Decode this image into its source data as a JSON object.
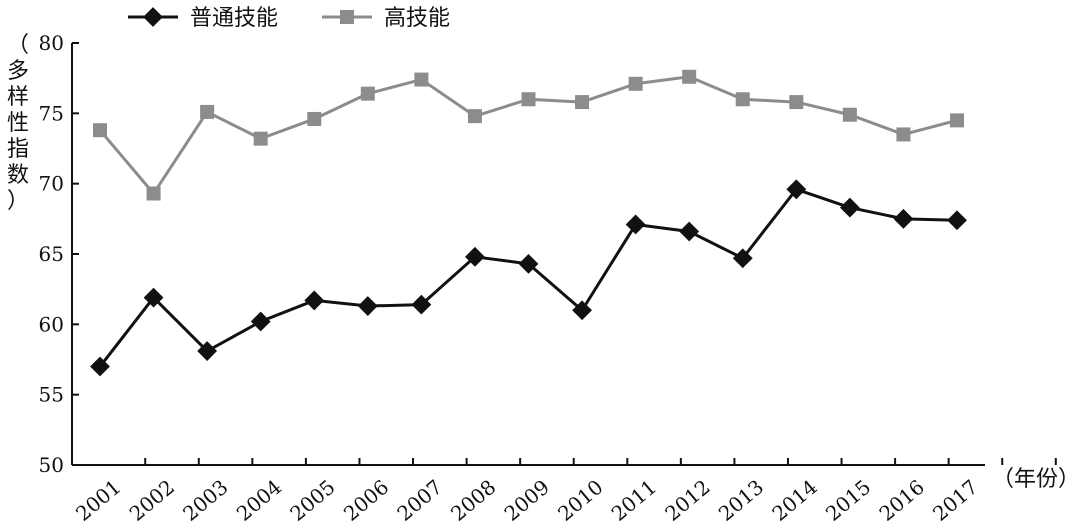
{
  "chart_data": {
    "type": "line",
    "x": [
      "2001",
      "2002",
      "2003",
      "2004",
      "2005",
      "2006",
      "2007",
      "2008",
      "2009",
      "2010",
      "2011",
      "2012",
      "2013",
      "2014",
      "2015",
      "2016",
      "2017"
    ],
    "series": [
      {
        "name": "普通技能",
        "color": "#111111",
        "marker": "diamond",
        "values": [
          57.0,
          61.9,
          58.1,
          60.2,
          61.7,
          61.3,
          61.4,
          64.8,
          64.3,
          61.0,
          67.1,
          66.6,
          64.7,
          69.6,
          68.3,
          67.5,
          67.4
        ]
      },
      {
        "name": "高技能",
        "color": "#8c8c8c",
        "marker": "square",
        "values": [
          73.8,
          69.3,
          75.1,
          73.2,
          74.6,
          76.4,
          77.4,
          74.8,
          76.0,
          75.8,
          77.1,
          77.6,
          76.0,
          75.8,
          74.9,
          73.5,
          74.5
        ]
      }
    ],
    "ylabel": "（多样性指数）",
    "xlabel": "（年份）",
    "ylim": [
      50,
      80
    ],
    "yticks": [
      "50",
      "55",
      "60",
      "65",
      "70",
      "75",
      "80"
    ],
    "legend_position": "top-left",
    "grid": false
  }
}
